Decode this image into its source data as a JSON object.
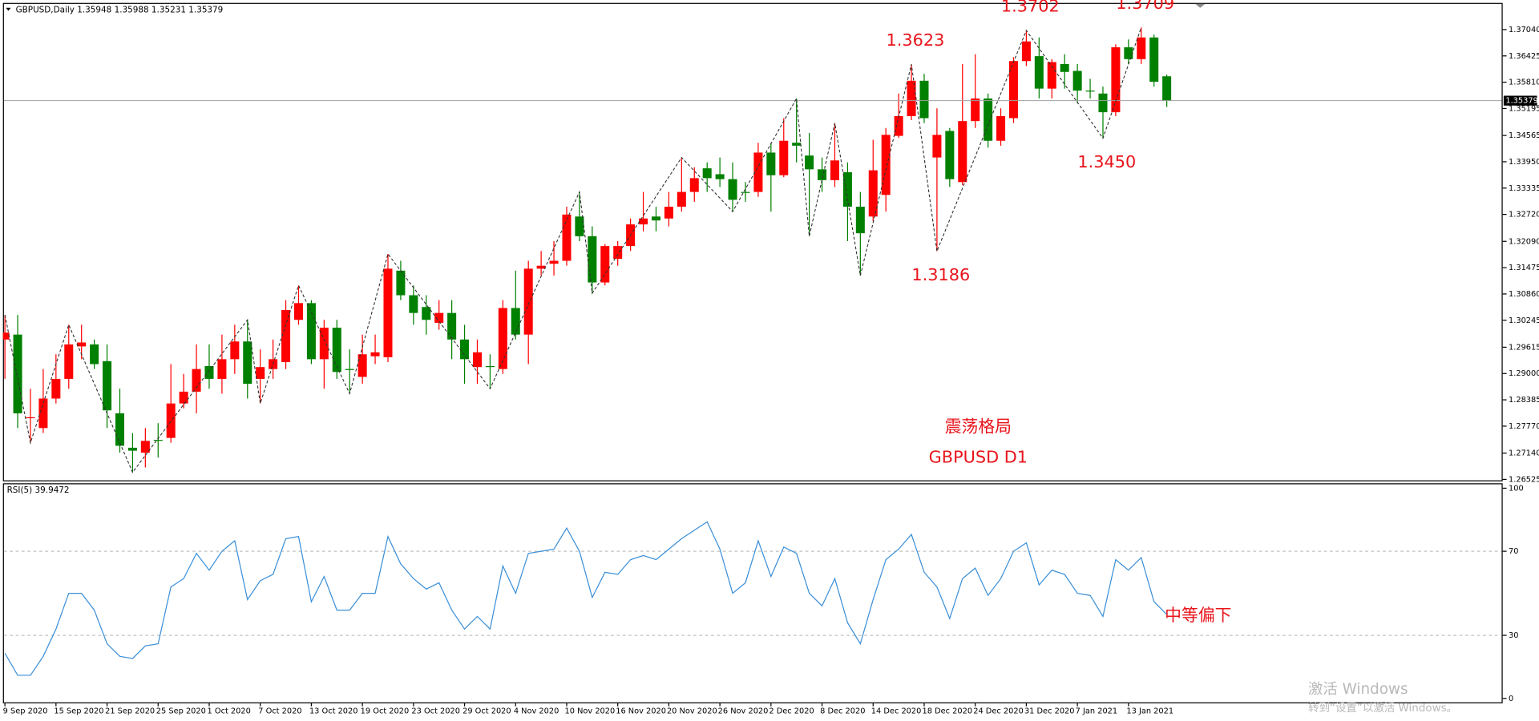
{
  "chart_data": [
    {
      "type": "candlestick",
      "title": "GBPUSD,Daily",
      "categories": [
        "9 Sep 2020",
        null,
        null,
        null,
        "15 Sep 2020",
        null,
        null,
        null,
        "21 Sep 2020",
        null,
        null,
        null,
        "25 Sep 2020",
        null,
        null,
        null,
        "1 Oct 2020",
        null,
        null,
        null,
        "7 Oct 2020",
        null,
        null,
        null,
        "13 Oct 2020",
        null,
        null,
        null,
        "19 Oct 2020",
        null,
        null,
        null,
        "23 Oct 2020",
        null,
        null,
        null,
        "29 Oct 2020",
        null,
        null,
        null,
        "4 Nov 2020",
        null,
        null,
        null,
        "10 Nov 2020",
        null,
        null,
        null,
        "16 Nov 2020",
        null,
        null,
        null,
        "20 Nov 2020",
        null,
        null,
        null,
        "26 Nov 2020",
        null,
        null,
        null,
        "2 Dec 2020",
        null,
        null,
        null,
        "8 Dec 2020",
        null,
        null,
        null,
        "14 Dec 2020",
        null,
        null,
        null,
        "18 Dec 2020",
        null,
        null,
        null,
        "24 Dec 2020",
        null,
        null,
        null,
        "31 Dec 2020",
        null,
        null,
        null,
        "7 Jan 2021",
        null,
        null,
        null,
        "13 Jan 2021",
        null,
        null,
        null
      ],
      "open": [
        1.29795,
        1.2991,
        1.27955,
        1.27725,
        1.28415,
        1.28875,
        1.29634,
        1.2968,
        1.29289,
        1.2807,
        1.27265,
        1.2715,
        1.27449,
        1.27495,
        1.283,
        1.28576,
        1.29174,
        1.28875,
        1.29335,
        1.29749,
        1.28875,
        1.29105,
        1.29266,
        1.30255,
        1.30646,
        1.29335,
        1.30071,
        1.29105,
        1.28921,
        1.29404,
        1.29381,
        1.31405,
        1.3083,
        1.30554,
        1.30186,
        1.30416,
        1.29795,
        1.29151,
        1.29174,
        1.29105,
        1.30531,
        1.2991,
        1.31451,
        1.31566,
        1.31635,
        1.3267,
        1.3221,
        1.31129,
        1.31681,
        1.3198,
        1.32486,
        1.3267,
        1.32624,
        1.329,
        1.33245,
        1.33797,
        1.33659,
        1.33544,
        1.33245,
        1.33245,
        1.34165,
        1.33636,
        1.34395,
        1.34096,
        1.33774,
        1.33521,
        1.33705,
        1.329,
        1.3267,
        1.33176,
        1.34556,
        1.35016,
        1.35844,
        1.3405,
        1.34671,
        1.33475,
        1.34901,
        1.3543,
        1.34441,
        1.3497,
        1.36304,
        1.36419,
        1.3566,
        1.36235,
        1.36074,
        1.35614,
        1.35545,
        1.35108,
        1.36626,
        1.3635,
        1.36856,
        1.35948
      ],
      "high": [
        1.3037,
        1.3037,
        1.28645,
        1.29105,
        1.2945,
        1.3014,
        1.3014,
        1.29795,
        1.2968,
        1.28645,
        1.2761,
        1.27725,
        1.2784,
        1.2922,
        1.2899,
        1.2968,
        1.2968,
        1.2991,
        1.3014,
        1.30255,
        1.29565,
        1.29795,
        1.30715,
        1.3106,
        1.30715,
        1.30255,
        1.30255,
        1.29565,
        1.2991,
        1.2991,
        1.31796,
        1.31635,
        1.3106,
        1.3083,
        1.30715,
        1.30715,
        1.3014,
        1.29795,
        1.2945,
        1.30715,
        1.31405,
        1.31635,
        1.31865,
        1.32095,
        1.329,
        1.33245,
        1.3244,
        1.32026,
        1.32095,
        1.32624,
        1.33245,
        1.329,
        1.33245,
        1.3405,
        1.3382,
        1.33935,
        1.3405,
        1.33935,
        1.33475,
        1.34395,
        1.34395,
        1.3497,
        1.3543,
        1.34625,
        1.3405,
        1.34855,
        1.33935,
        1.33245,
        1.34464,
        1.3474,
        1.35545,
        1.3623,
        1.36005,
        1.352,
        1.3474,
        1.36235,
        1.36465,
        1.35545,
        1.352,
        1.36396,
        1.3702,
        1.36856,
        1.3635,
        1.36465,
        1.36235,
        1.3589,
        1.35706,
        1.36695,
        1.3681,
        1.3709,
        1.36925,
        1.35988
      ],
      "low": [
        1.28875,
        1.27725,
        1.2738,
        1.2761,
        1.283,
        1.28645,
        1.29335,
        1.29105,
        1.27725,
        1.2715,
        1.2669,
        1.26805,
        1.27035,
        1.2738,
        1.28185,
        1.2807,
        1.28645,
        1.2853,
        1.2899,
        1.28415,
        1.283,
        1.28875,
        1.29105,
        1.3014,
        1.2922,
        1.28645,
        1.28875,
        1.2853,
        1.2876,
        1.2922,
        1.29266,
        1.30715,
        1.3014,
        1.2991,
        1.30025,
        1.29335,
        1.2876,
        1.2876,
        1.28645,
        1.2899,
        1.29795,
        1.2922,
        1.3129,
        1.3129,
        1.3152,
        1.32095,
        1.30876,
        1.3106,
        1.3152,
        1.31865,
        1.32325,
        1.32325,
        1.3244,
        1.32785,
        1.33015,
        1.33245,
        1.3336,
        1.32785,
        1.33015,
        1.3313,
        1.32785,
        1.3359,
        1.33935,
        1.3221,
        1.33245,
        1.3336,
        1.32095,
        1.3129,
        1.32555,
        1.32785,
        1.3451,
        1.34924,
        1.34855,
        1.3186,
        1.3336,
        1.33406,
        1.3474,
        1.3428,
        1.34326,
        1.34855,
        1.36189,
        1.3543,
        1.3543,
        1.3566,
        1.35315,
        1.3543,
        1.345,
        1.35016,
        1.36235,
        1.36235,
        1.35706,
        1.35231
      ],
      "close": [
        1.29956,
        1.2807,
        1.27978,
        1.28415,
        1.28875,
        1.2968,
        1.29726,
        1.2922,
        1.28139,
        1.27311,
        1.27196,
        1.27426,
        1.27426,
        1.283,
        1.28576,
        1.29105,
        1.28875,
        1.29335,
        1.29749,
        1.2876,
        1.29151,
        1.29335,
        1.30485,
        1.30646,
        1.29335,
        1.30071,
        1.29036,
        1.29082,
        1.2945,
        1.29496,
        1.31451,
        1.3083,
        1.30416,
        1.30255,
        1.30416,
        1.29795,
        1.29335,
        1.29496,
        1.29151,
        1.30531,
        1.2991,
        1.31451,
        1.3152,
        1.31635,
        1.32716,
        1.3221,
        1.31129,
        1.3198,
        1.3198,
        1.32486,
        1.32624,
        1.32578,
        1.329,
        1.33245,
        1.33567,
        1.33567,
        1.33544,
        1.33061,
        1.33222,
        1.34165,
        1.33636,
        1.34441,
        1.34326,
        1.33774,
        1.33521,
        1.33981,
        1.329,
        1.32279,
        1.33751,
        1.34579,
        1.35016,
        1.35844,
        1.3497,
        1.34579,
        1.33544,
        1.34901,
        1.3543,
        1.34441,
        1.35016,
        1.36304,
        1.36764,
        1.3566,
        1.36281,
        1.36051,
        1.35614,
        1.35591,
        1.35108,
        1.36626,
        1.3635,
        1.36856,
        1.35821,
        1.35379
      ],
      "colors": {
        "up": "#ff0000",
        "down": "#008000"
      },
      "ylim": [
        1.2648,
        1.3764
      ],
      "yticks": [
        {
          "value": 1.3704,
          "label": "1.37040"
        },
        1.36425,
        {
          "value": 1.3581,
          "label": "1.35810"
        },
        1.35195,
        1.34565,
        {
          "value": 1.3395,
          "label": "1.33950"
        },
        1.33335,
        {
          "value": 1.3272,
          "label": "1.32720"
        },
        {
          "value": 1.3209,
          "label": "1.32090"
        },
        1.31475,
        {
          "value": 1.3086,
          "label": "1.30860"
        },
        1.30245,
        1.29615,
        {
          "value": 1.29,
          "label": "1.29000"
        },
        1.28385,
        {
          "value": 1.2777,
          "label": "1.27770"
        },
        {
          "value": 1.2714,
          "label": "1.27140"
        },
        1.26525
      ],
      "grid": false,
      "zigzag": {
        "x": [
          0,
          2,
          5,
          10,
          19,
          20,
          23,
          27,
          30,
          38,
          45,
          46,
          53,
          57,
          62,
          63,
          65,
          67,
          71,
          73,
          80,
          86,
          89
        ],
        "values": [
          1.3037,
          1.2738,
          1.3014,
          1.2669,
          1.30255,
          1.283,
          1.3106,
          1.2853,
          1.31796,
          1.28645,
          1.33245,
          1.30876,
          1.3405,
          1.32785,
          1.3543,
          1.3221,
          1.34855,
          1.3129,
          1.3623,
          1.3186,
          1.3702,
          1.345,
          1.3709
        ],
        "value_labels": [
          null,
          null,
          null,
          null,
          null,
          null,
          null,
          null,
          null,
          null,
          null,
          null,
          null,
          null,
          null,
          null,
          null,
          null,
          "1.3623",
          "1.3186",
          "1.3702",
          "1.3450",
          "1.3709"
        ],
        "color": "#333333"
      },
      "annotations": [
        "震荡格局",
        "GBPUSD D1"
      ]
    },
    {
      "type": "line",
      "title": "RSI(5)",
      "values": [
        21.5,
        11,
        11,
        20,
        33,
        50,
        50,
        42,
        26,
        20,
        19,
        25,
        26,
        53,
        57,
        69,
        61,
        70,
        75,
        47,
        56,
        59,
        76,
        77,
        46,
        58,
        42,
        42,
        50,
        50,
        77,
        64,
        57,
        52,
        55,
        42,
        33,
        39,
        33,
        63,
        50,
        69,
        70,
        71,
        81,
        70,
        48,
        60,
        59,
        66,
        68,
        66,
        71,
        76,
        80,
        84,
        71,
        50,
        55,
        75,
        58,
        72,
        69,
        50,
        44,
        57,
        36,
        26,
        47,
        66,
        71,
        78,
        60,
        53,
        38,
        57,
        62,
        49,
        57,
        70,
        74,
        54,
        61,
        59,
        50,
        49,
        39,
        66,
        61,
        67,
        46,
        39.9472
      ],
      "color": "#3a8fd8",
      "ylim": [
        0,
        100
      ],
      "yticks": [
        100,
        70,
        30,
        0
      ],
      "grid": true,
      "annotations": [
        "中等偏下"
      ]
    }
  ],
  "watermark": [
    "激活 Windows",
    "转到“设置”以激活 Windows。"
  ]
}
